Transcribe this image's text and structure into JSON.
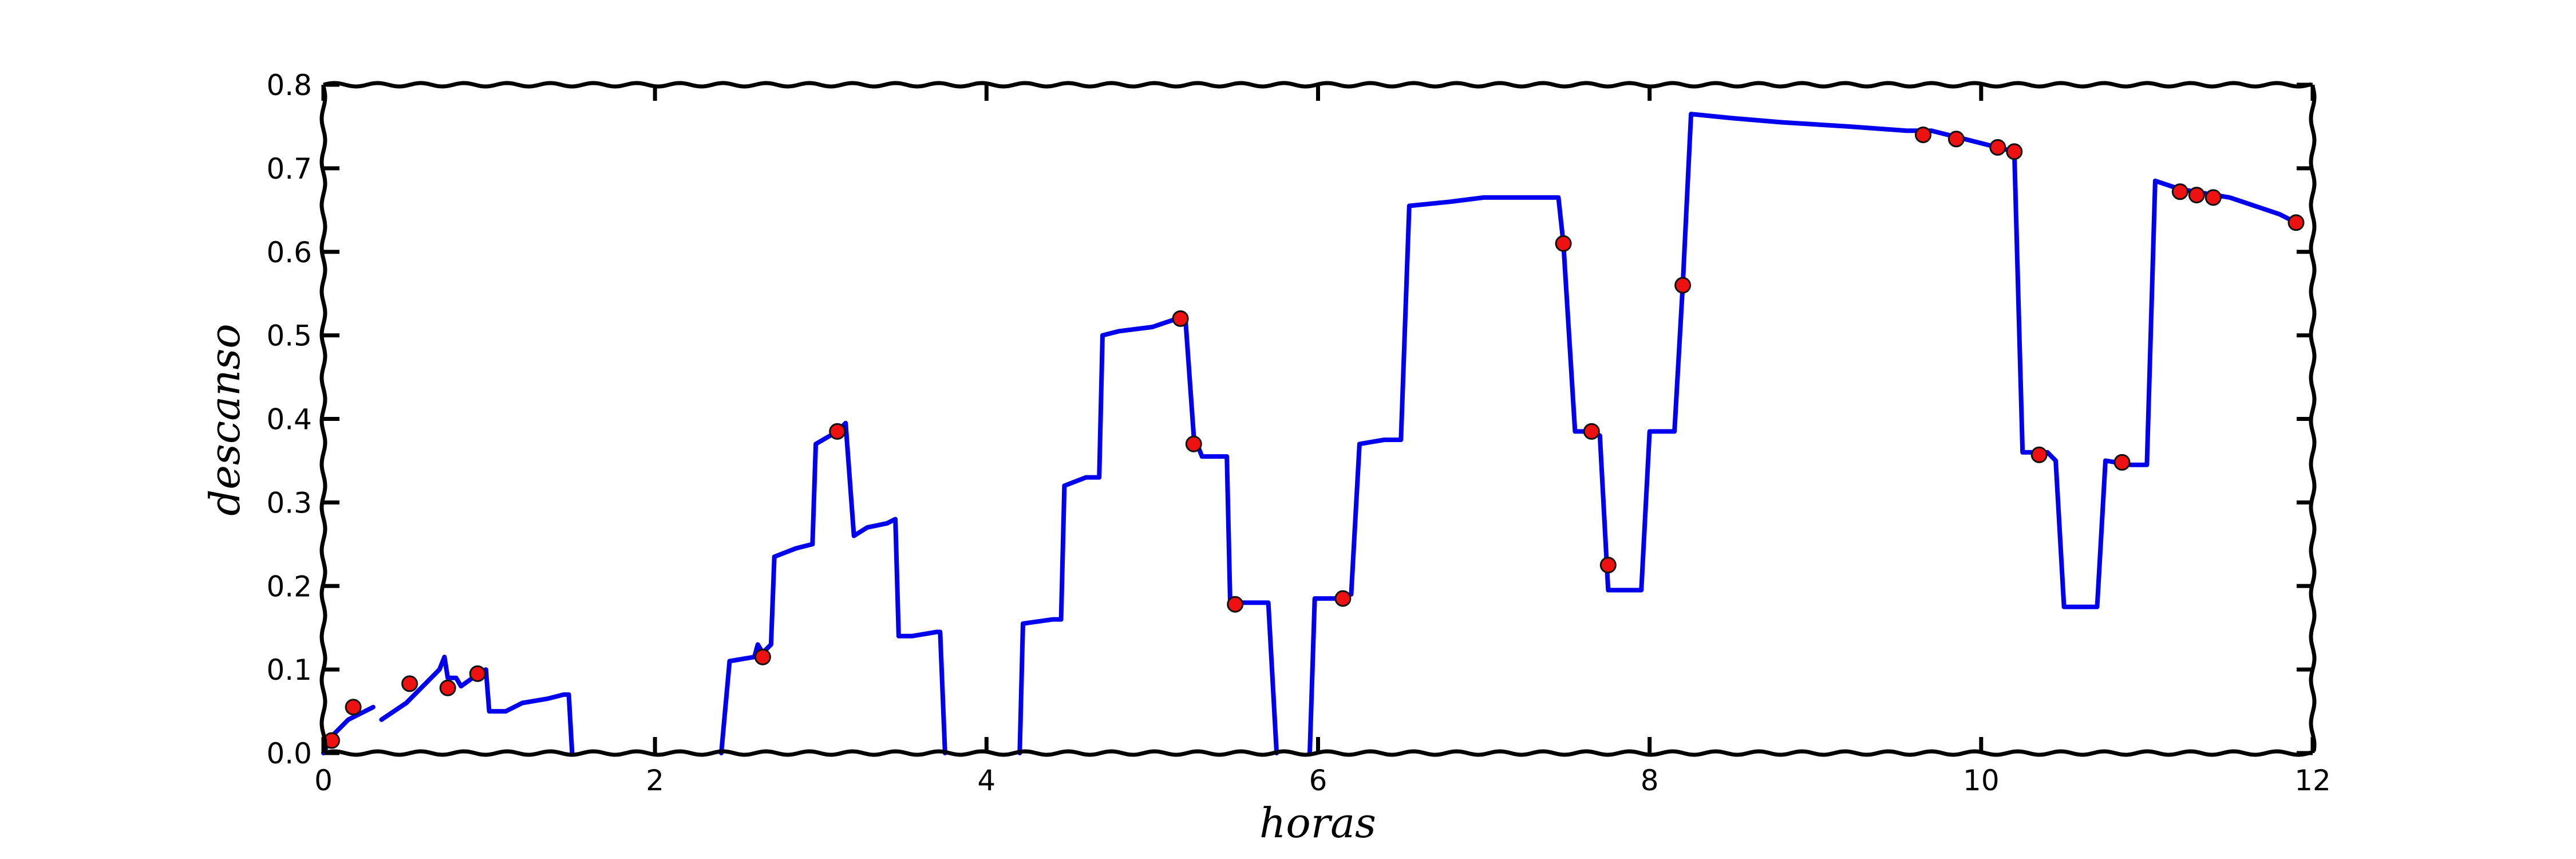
{
  "chart_data": {
    "type": "line",
    "title": "",
    "xlabel": "horas",
    "ylabel": "descanso",
    "xlim": [
      0,
      12
    ],
    "ylim": [
      0,
      0.8
    ],
    "xticks": [
      "0",
      "2",
      "4",
      "6",
      "8",
      "10",
      "12"
    ],
    "yticks": [
      "0.0",
      "0.1",
      "0.2",
      "0.3",
      "0.4",
      "0.5",
      "0.6",
      "0.7",
      "0.8"
    ],
    "grid": false,
    "legend": "none",
    "colors": {
      "line": "#0000ee",
      "marker": "#ee1111",
      "marker_edge": "#111111",
      "axes": "#000000"
    },
    "series": [
      {
        "style": "line",
        "segments": [
          [
            [
              0.0,
              0.0
            ],
            [
              0.05,
              0.02
            ],
            [
              0.15,
              0.04
            ],
            [
              0.3,
              0.055
            ]
          ],
          [
            [
              0.35,
              0.04
            ],
            [
              0.5,
              0.06
            ],
            [
              0.65,
              0.09
            ],
            [
              0.7,
              0.1
            ],
            [
              0.73,
              0.115
            ],
            [
              0.75,
              0.09
            ],
            [
              0.8,
              0.09
            ],
            [
              0.83,
              0.08
            ],
            [
              0.9,
              0.09
            ],
            [
              0.98,
              0.1
            ],
            [
              1.0,
              0.05
            ],
            [
              1.1,
              0.05
            ],
            [
              1.2,
              0.06
            ],
            [
              1.35,
              0.065
            ],
            [
              1.45,
              0.07
            ],
            [
              1.48,
              0.07
            ],
            [
              1.5,
              0.0
            ]
          ],
          [
            [
              2.4,
              0.0
            ],
            [
              2.45,
              0.11
            ],
            [
              2.6,
              0.115
            ],
            [
              2.62,
              0.13
            ],
            [
              2.65,
              0.12
            ],
            [
              2.7,
              0.13
            ],
            [
              2.72,
              0.235
            ],
            [
              2.85,
              0.245
            ],
            [
              2.95,
              0.25
            ],
            [
              2.97,
              0.37
            ],
            [
              3.1,
              0.385
            ],
            [
              3.15,
              0.395
            ],
            [
              3.2,
              0.26
            ],
            [
              3.28,
              0.27
            ],
            [
              3.4,
              0.275
            ],
            [
              3.45,
              0.28
            ],
            [
              3.47,
              0.14
            ],
            [
              3.55,
              0.14
            ],
            [
              3.7,
              0.145
            ],
            [
              3.72,
              0.145
            ],
            [
              3.75,
              0.0
            ]
          ],
          [
            [
              4.2,
              0.0
            ],
            [
              4.22,
              0.155
            ],
            [
              4.4,
              0.16
            ],
            [
              4.45,
              0.16
            ],
            [
              4.47,
              0.32
            ],
            [
              4.6,
              0.33
            ],
            [
              4.68,
              0.33
            ],
            [
              4.7,
              0.5
            ],
            [
              4.8,
              0.505
            ],
            [
              5.0,
              0.51
            ],
            [
              5.15,
              0.52
            ],
            [
              5.2,
              0.52
            ],
            [
              5.25,
              0.38
            ],
            [
              5.3,
              0.355
            ],
            [
              5.45,
              0.355
            ],
            [
              5.47,
              0.18
            ],
            [
              5.6,
              0.18
            ],
            [
              5.7,
              0.18
            ],
            [
              5.75,
              0.0
            ]
          ],
          [
            [
              5.95,
              0.0
            ],
            [
              5.98,
              0.185
            ],
            [
              6.05,
              0.185
            ],
            [
              6.1,
              0.185
            ],
            [
              6.2,
              0.19
            ],
            [
              6.25,
              0.37
            ],
            [
              6.4,
              0.375
            ],
            [
              6.5,
              0.375
            ],
            [
              6.55,
              0.655
            ],
            [
              6.8,
              0.66
            ],
            [
              7.0,
              0.665
            ],
            [
              7.3,
              0.665
            ],
            [
              7.45,
              0.665
            ],
            [
              7.48,
              0.61
            ],
            [
              7.55,
              0.385
            ],
            [
              7.65,
              0.385
            ],
            [
              7.7,
              0.38
            ],
            [
              7.75,
              0.195
            ],
            [
              7.85,
              0.195
            ],
            [
              7.95,
              0.195
            ],
            [
              8.0,
              0.385
            ],
            [
              8.15,
              0.385
            ],
            [
              8.2,
              0.56
            ],
            [
              8.25,
              0.765
            ],
            [
              8.5,
              0.76
            ],
            [
              8.8,
              0.755
            ],
            [
              9.2,
              0.75
            ],
            [
              9.55,
              0.745
            ],
            [
              9.7,
              0.745
            ],
            [
              9.9,
              0.735
            ],
            [
              10.1,
              0.725
            ],
            [
              10.2,
              0.72
            ],
            [
              10.25,
              0.36
            ],
            [
              10.4,
              0.36
            ],
            [
              10.45,
              0.35
            ],
            [
              10.5,
              0.175
            ],
            [
              10.65,
              0.175
            ],
            [
              10.7,
              0.175
            ],
            [
              10.75,
              0.35
            ],
            [
              10.9,
              0.345
            ],
            [
              11.0,
              0.345
            ],
            [
              11.05,
              0.685
            ],
            [
              11.2,
              0.675
            ],
            [
              11.5,
              0.665
            ],
            [
              11.8,
              0.645
            ],
            [
              11.9,
              0.635
            ]
          ]
        ]
      },
      {
        "style": "markers",
        "points": [
          [
            0.05,
            0.015
          ],
          [
            0.18,
            0.055
          ],
          [
            0.52,
            0.083
          ],
          [
            0.75,
            0.078
          ],
          [
            0.93,
            0.095
          ],
          [
            2.65,
            0.115
          ],
          [
            3.1,
            0.385
          ],
          [
            5.17,
            0.52
          ],
          [
            5.25,
            0.37
          ],
          [
            5.5,
            0.178
          ],
          [
            6.15,
            0.185
          ],
          [
            7.48,
            0.61
          ],
          [
            7.65,
            0.385
          ],
          [
            7.75,
            0.225
          ],
          [
            8.2,
            0.56
          ],
          [
            9.65,
            0.74
          ],
          [
            9.85,
            0.735
          ],
          [
            10.1,
            0.725
          ],
          [
            10.2,
            0.72
          ],
          [
            10.35,
            0.357
          ],
          [
            10.85,
            0.348
          ],
          [
            11.2,
            0.672
          ],
          [
            11.3,
            0.668
          ],
          [
            11.4,
            0.665
          ],
          [
            11.9,
            0.635
          ]
        ]
      }
    ]
  }
}
